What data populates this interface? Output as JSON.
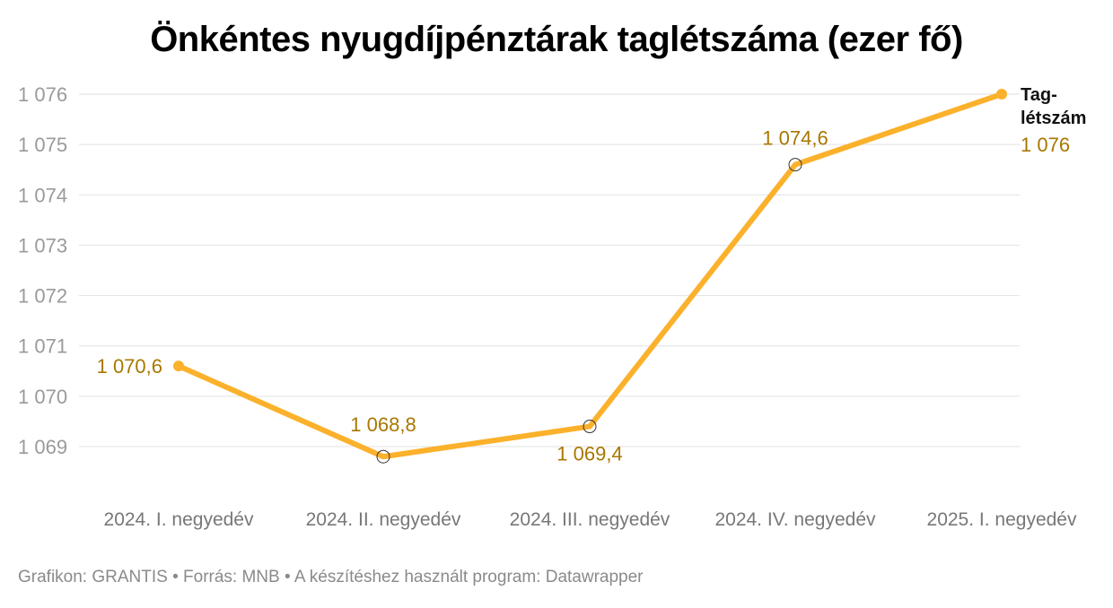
{
  "chart_data": {
    "type": "line",
    "title": "Önkéntes nyugdíjpénztárak taglétszáma (ezer fő)",
    "categories": [
      "2024. I. negyedév",
      "2024. II. negyedév",
      "2024. III. negyedév",
      "2024. IV. negyedév",
      "2025. I. negyedév"
    ],
    "series": [
      {
        "name": "Tag-\nlétszám",
        "values": [
          1070.6,
          1068.8,
          1069.4,
          1074.6,
          1076
        ],
        "labels": [
          "1 070,6",
          "1 068,8",
          "1 069,4",
          "1 074,6",
          "1 076"
        ],
        "color": "#fbb12b"
      }
    ],
    "yticks": [
      1069,
      1070,
      1071,
      1072,
      1073,
      1074,
      1075,
      1076
    ],
    "ytick_labels": [
      "1 069",
      "1 070",
      "1 071",
      "1 072",
      "1 073",
      "1 074",
      "1 075",
      "1 076"
    ],
    "ylim": [
      1068.2,
      1076
    ],
    "grid": true,
    "legend": "end-of-line label"
  },
  "footer": "Grafikon: GRANTIS • Forrás: MNB • A készítéshez használt program: Datawrapper"
}
